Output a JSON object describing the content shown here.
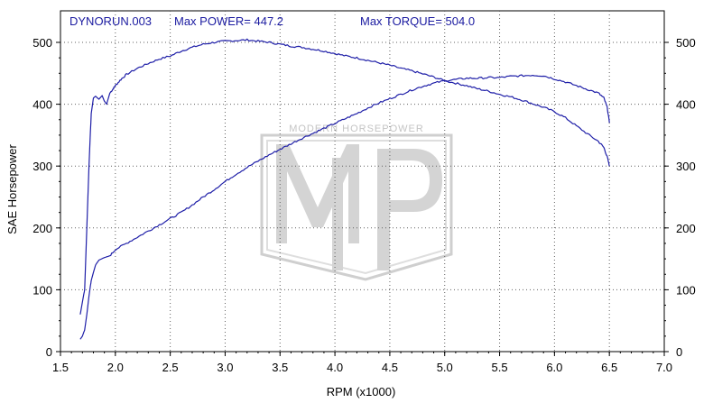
{
  "header": {
    "run_name": "DYNORUN.003",
    "max_power_label": "Max POWER= 447.2",
    "max_torque_label": "Max TORQUE= 504.0"
  },
  "watermark": {
    "text": "MODERN HORSEPOWER",
    "letters": "MHP"
  },
  "colors": {
    "curve": "#1f1fa8",
    "grid": "#606060",
    "header_text": "#1a1aa0",
    "watermark": "#c8c8c8"
  },
  "chart_data": {
    "type": "line",
    "xlabel": "RPM (x1000)",
    "ylabel": "SAE Horsepower",
    "xlim": [
      1.5,
      7.0
    ],
    "ylim": [
      0,
      500
    ],
    "xticks": [
      "1.5",
      "2.0",
      "2.5",
      "3.0",
      "3.5",
      "4.0",
      "4.5",
      "5.0",
      "5.5",
      "6.0",
      "6.5",
      "7.0"
    ],
    "yticks_left": [
      "0",
      "100",
      "200",
      "300",
      "400",
      "500"
    ],
    "yticks_right": [
      "0",
      "100",
      "200",
      "300",
      "400",
      "500"
    ],
    "grid": true,
    "series": [
      {
        "name": "",
        "x": [
          1.68,
          1.7,
          1.72,
          1.74,
          1.76,
          1.78,
          1.8,
          1.82,
          1.85,
          1.88,
          1.9,
          1.92,
          1.95,
          1.98,
          2.0,
          2.05,
          2.1,
          2.2,
          2.3,
          2.4,
          2.5,
          2.6,
          2.7,
          2.8,
          2.9,
          3.0,
          3.1,
          3.2,
          3.3,
          3.4,
          3.5,
          3.6,
          3.7,
          3.8,
          3.9,
          4.0,
          4.1,
          4.2,
          4.3,
          4.4,
          4.5,
          4.6,
          4.7,
          4.8,
          4.9,
          5.0,
          5.1,
          5.2,
          5.3,
          5.4,
          5.5,
          5.6,
          5.7,
          5.8,
          5.9,
          6.0,
          6.1,
          6.2,
          6.3,
          6.4,
          6.45,
          6.48,
          6.5
        ],
        "values": [
          60,
          80,
          100,
          200,
          300,
          385,
          410,
          413,
          408,
          414,
          405,
          400,
          418,
          425,
          430,
          440,
          448,
          458,
          466,
          473,
          478,
          486,
          492,
          497,
          500,
          502,
          503,
          504,
          502,
          500,
          497,
          494,
          492,
          489,
          486,
          482,
          478,
          475,
          471,
          467,
          463,
          458,
          454,
          449,
          444,
          438,
          434,
          430,
          425,
          421,
          416,
          412,
          407,
          401,
          395,
          388,
          378,
          365,
          352,
          340,
          330,
          315,
          300
        ]
      },
      {
        "name": "",
        "x": [
          1.68,
          1.7,
          1.72,
          1.74,
          1.76,
          1.78,
          1.8,
          1.82,
          1.85,
          1.9,
          1.95,
          2.0,
          2.1,
          2.2,
          2.3,
          2.4,
          2.5,
          2.6,
          2.7,
          2.8,
          2.9,
          3.0,
          3.1,
          3.2,
          3.3,
          3.4,
          3.5,
          3.6,
          3.7,
          3.8,
          3.9,
          4.0,
          4.1,
          4.2,
          4.3,
          4.4,
          4.5,
          4.6,
          4.7,
          4.8,
          4.9,
          5.0,
          5.1,
          5.2,
          5.3,
          5.4,
          5.5,
          5.6,
          5.7,
          5.8,
          5.9,
          6.0,
          6.1,
          6.2,
          6.3,
          6.4,
          6.45,
          6.48,
          6.5
        ],
        "values": [
          20,
          25,
          35,
          60,
          90,
          115,
          128,
          140,
          148,
          152,
          155,
          165,
          175,
          185,
          195,
          205,
          215,
          225,
          237,
          250,
          262,
          275,
          287,
          298,
          308,
          318,
          327,
          336,
          345,
          353,
          361,
          369,
          377,
          385,
          394,
          402,
          409,
          416,
          423,
          429,
          434,
          438,
          440,
          442,
          442,
          443,
          443,
          445,
          446,
          447,
          446,
          441,
          436,
          430,
          424,
          418,
          410,
          395,
          370
        ]
      }
    ]
  }
}
